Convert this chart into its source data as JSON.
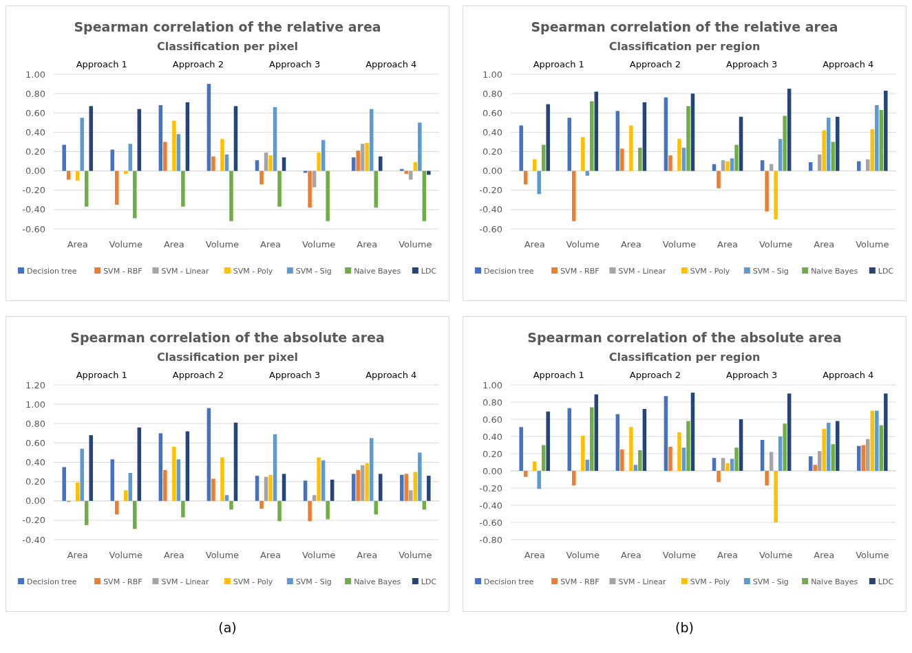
{
  "chart_data": [
    {
      "type": "bar",
      "title": "Spearman correlation of the relative area",
      "subtitle": "Classification per pixel",
      "categories": [
        "Area",
        "Volume",
        "Area",
        "Volume",
        "Area",
        "Volume",
        "Area",
        "Volume"
      ],
      "annotations": [
        "Approach 1",
        "Approach 2",
        "Approach 3",
        "Approach 4"
      ],
      "ylim": [
        -0.6,
        1.0
      ],
      "yticks": [
        {
          "value": -0.6,
          "label": "-0.60"
        },
        {
          "value": -0.4,
          "label": "-0.40"
        },
        {
          "value": -0.2,
          "label": "-0.20"
        },
        {
          "value": 0,
          "label": "0.00"
        },
        {
          "value": 0.2,
          "label": "0.20"
        },
        {
          "value": 0.4,
          "label": "0.40"
        },
        {
          "value": 0.6,
          "label": "0.60"
        },
        {
          "value": 0.8,
          "label": "0.80"
        },
        {
          "value": 1.0,
          "label": "1.00"
        }
      ],
      "grid": "y",
      "legend": "bottom",
      "series": [
        {
          "name": "Decision tree",
          "color": "#4472c4",
          "values": [
            0.27,
            0.22,
            0.68,
            0.9,
            0.11,
            -0.02,
            0.14,
            0.02
          ]
        },
        {
          "name": "SVM - RBF",
          "color": "#ed7d31",
          "values": [
            -0.09,
            -0.35,
            0.3,
            0.15,
            -0.14,
            -0.38,
            0.21,
            -0.03
          ]
        },
        {
          "name": "SVM - Linear",
          "color": "#a5a5a5",
          "values": [
            null,
            null,
            null,
            null,
            0.19,
            -0.17,
            0.28,
            -0.09
          ]
        },
        {
          "name": "SVM - Poly",
          "color": "#ffc000",
          "values": [
            -0.1,
            -0.03,
            0.52,
            0.33,
            0.16,
            0.19,
            0.29,
            0.09
          ]
        },
        {
          "name": "SVM - Sig",
          "color": "#5b9bd5",
          "values": [
            0.55,
            0.28,
            0.38,
            0.17,
            0.66,
            0.32,
            0.64,
            0.5
          ]
        },
        {
          "name": "Naive Bayes",
          "color": "#70ad47",
          "values": [
            -0.37,
            -0.49,
            -0.37,
            -0.52,
            -0.37,
            -0.52,
            -0.38,
            -0.52
          ]
        },
        {
          "name": "LDC",
          "color": "#264478",
          "values": [
            0.67,
            0.64,
            0.71,
            0.67,
            0.14,
            null,
            0.15,
            -0.04
          ]
        }
      ]
    },
    {
      "type": "bar",
      "title": "Spearman correlation of the relative area",
      "subtitle": "Classification per region",
      "categories": [
        "Area",
        "Volume",
        "Area",
        "Volume",
        "Area",
        "Volume",
        "Area",
        "Volume"
      ],
      "annotations": [
        "Approach 1",
        "Approach 2",
        "Approach 3",
        "Approach 4"
      ],
      "ylim": [
        -0.6,
        1.0
      ],
      "yticks": [
        {
          "value": -0.6,
          "label": "-0.60"
        },
        {
          "value": -0.4,
          "label": "-0.40"
        },
        {
          "value": -0.2,
          "label": "-0.20"
        },
        {
          "value": 0,
          "label": "0.00"
        },
        {
          "value": 0.2,
          "label": "0.20"
        },
        {
          "value": 0.4,
          "label": "0.40"
        },
        {
          "value": 0.6,
          "label": "0.60"
        },
        {
          "value": 0.8,
          "label": "0.80"
        },
        {
          "value": 1.0,
          "label": "1.00"
        }
      ],
      "grid": "y",
      "legend": "bottom",
      "series": [
        {
          "name": "Decision tree",
          "color": "#4472c4",
          "values": [
            0.47,
            0.55,
            0.62,
            0.76,
            0.07,
            0.11,
            0.09,
            0.1
          ]
        },
        {
          "name": "SVM - RBF",
          "color": "#ed7d31",
          "values": [
            -0.14,
            -0.52,
            0.23,
            0.16,
            -0.18,
            -0.42,
            null,
            null
          ]
        },
        {
          "name": "SVM - Linear",
          "color": "#a5a5a5",
          "values": [
            null,
            null,
            null,
            null,
            0.11,
            0.07,
            0.17,
            0.12
          ]
        },
        {
          "name": "SVM - Poly",
          "color": "#ffc000",
          "values": [
            0.12,
            0.35,
            0.47,
            0.33,
            0.1,
            -0.5,
            0.42,
            0.43
          ]
        },
        {
          "name": "SVM - Sig",
          "color": "#5b9bd5",
          "values": [
            -0.24,
            -0.05,
            null,
            0.24,
            0.13,
            0.33,
            0.55,
            0.68
          ]
        },
        {
          "name": "Naive Bayes",
          "color": "#70ad47",
          "values": [
            0.27,
            0.72,
            0.24,
            0.67,
            0.27,
            0.57,
            0.3,
            0.63
          ]
        },
        {
          "name": "LDC",
          "color": "#264478",
          "values": [
            0.69,
            0.82,
            0.71,
            0.8,
            0.56,
            0.85,
            0.56,
            0.83
          ]
        }
      ]
    },
    {
      "type": "bar",
      "title": "Spearman correlation of the absolute area",
      "subtitle": "Classification per pixel",
      "categories": [
        "Area",
        "Volume",
        "Area",
        "Volume",
        "Area",
        "Volume",
        "Area",
        "Volume"
      ],
      "annotations": [
        "Approach 1",
        "Approach 2",
        "Approach 3",
        "Approach 4",
        "(a)"
      ],
      "ylim": [
        -0.4,
        1.2
      ],
      "yticks": [
        {
          "value": -0.4,
          "label": "-0.40"
        },
        {
          "value": -0.2,
          "label": "-0.20"
        },
        {
          "value": 0,
          "label": "0.00"
        },
        {
          "value": 0.2,
          "label": "0.20"
        },
        {
          "value": 0.4,
          "label": "0.40"
        },
        {
          "value": 0.6,
          "label": "0.60"
        },
        {
          "value": 0.8,
          "label": "0.80"
        },
        {
          "value": 1.0,
          "label": "1.00"
        },
        {
          "value": 1.2,
          "label": "1.20"
        }
      ],
      "grid": "y",
      "legend": "bottom",
      "series": [
        {
          "name": "Decision tree",
          "color": "#4472c4",
          "values": [
            0.35,
            0.43,
            0.7,
            0.96,
            0.26,
            0.21,
            0.28,
            0.27
          ]
        },
        {
          "name": "SVM - RBF",
          "color": "#ed7d31",
          "values": [
            -0.01,
            -0.14,
            0.32,
            0.23,
            -0.08,
            -0.21,
            0.32,
            0.28
          ]
        },
        {
          "name": "SVM - Linear",
          "color": "#a5a5a5",
          "values": [
            null,
            null,
            null,
            null,
            0.25,
            0.06,
            0.37,
            0.11
          ]
        },
        {
          "name": "SVM - Poly",
          "color": "#ffc000",
          "values": [
            0.19,
            0.11,
            0.56,
            0.45,
            0.27,
            0.45,
            0.39,
            0.3
          ]
        },
        {
          "name": "SVM - Sig",
          "color": "#5b9bd5",
          "values": [
            0.54,
            0.29,
            0.43,
            0.06,
            0.69,
            0.42,
            0.65,
            0.5
          ]
        },
        {
          "name": "Naive Bayes",
          "color": "#70ad47",
          "values": [
            -0.25,
            -0.29,
            -0.17,
            -0.09,
            -0.21,
            -0.19,
            -0.14,
            -0.09
          ]
        },
        {
          "name": "LDC",
          "color": "#264478",
          "values": [
            0.68,
            0.76,
            0.72,
            0.81,
            0.28,
            0.22,
            0.28,
            0.26
          ]
        }
      ]
    },
    {
      "type": "bar",
      "title": "Spearman correlation of the absolute area",
      "subtitle": "Classification per region",
      "categories": [
        "Area",
        "Volume",
        "Area",
        "Volume",
        "Area",
        "Volume",
        "Area",
        "Volume"
      ],
      "annotations": [
        "Approach 1",
        "Approach 2",
        "Approach 3",
        "Approach 4",
        "(b)"
      ],
      "ylim": [
        -0.8,
        1.0
      ],
      "yticks": [
        {
          "value": -0.8,
          "label": "-0.80"
        },
        {
          "value": -0.6,
          "label": "-0.60"
        },
        {
          "value": -0.4,
          "label": "-0.40"
        },
        {
          "value": -0.2,
          "label": "-0.20"
        },
        {
          "value": 0,
          "label": "0.00"
        },
        {
          "value": 0.2,
          "label": "0.20"
        },
        {
          "value": 0.4,
          "label": "0.40"
        },
        {
          "value": 0.6,
          "label": "0.60"
        },
        {
          "value": 0.8,
          "label": "0.80"
        },
        {
          "value": 1.0,
          "label": "1.00"
        }
      ],
      "grid": "y",
      "legend": "bottom",
      "series": [
        {
          "name": "Decision tree",
          "color": "#4472c4",
          "values": [
            0.51,
            0.73,
            0.66,
            0.87,
            0.15,
            0.36,
            0.17,
            0.29
          ]
        },
        {
          "name": "SVM - RBF",
          "color": "#ed7d31",
          "values": [
            -0.07,
            -0.17,
            0.25,
            0.28,
            -0.13,
            -0.17,
            0.07,
            0.3
          ]
        },
        {
          "name": "SVM - Linear",
          "color": "#a5a5a5",
          "values": [
            null,
            null,
            null,
            null,
            0.15,
            0.22,
            0.23,
            0.37
          ]
        },
        {
          "name": "SVM - Poly",
          "color": "#ffc000",
          "values": [
            0.11,
            0.41,
            0.51,
            0.45,
            0.09,
            -0.6,
            0.49,
            0.7
          ]
        },
        {
          "name": "SVM - Sig",
          "color": "#5b9bd5",
          "values": [
            -0.21,
            0.13,
            0.07,
            0.27,
            0.14,
            0.4,
            0.56,
            0.7
          ]
        },
        {
          "name": "Naive Bayes",
          "color": "#70ad47",
          "values": [
            0.3,
            0.74,
            0.24,
            0.58,
            0.27,
            0.55,
            0.31,
            0.53
          ]
        },
        {
          "name": "LDC",
          "color": "#264478",
          "values": [
            0.69,
            0.89,
            0.72,
            0.91,
            0.6,
            0.9,
            0.58,
            0.9
          ]
        }
      ]
    }
  ]
}
